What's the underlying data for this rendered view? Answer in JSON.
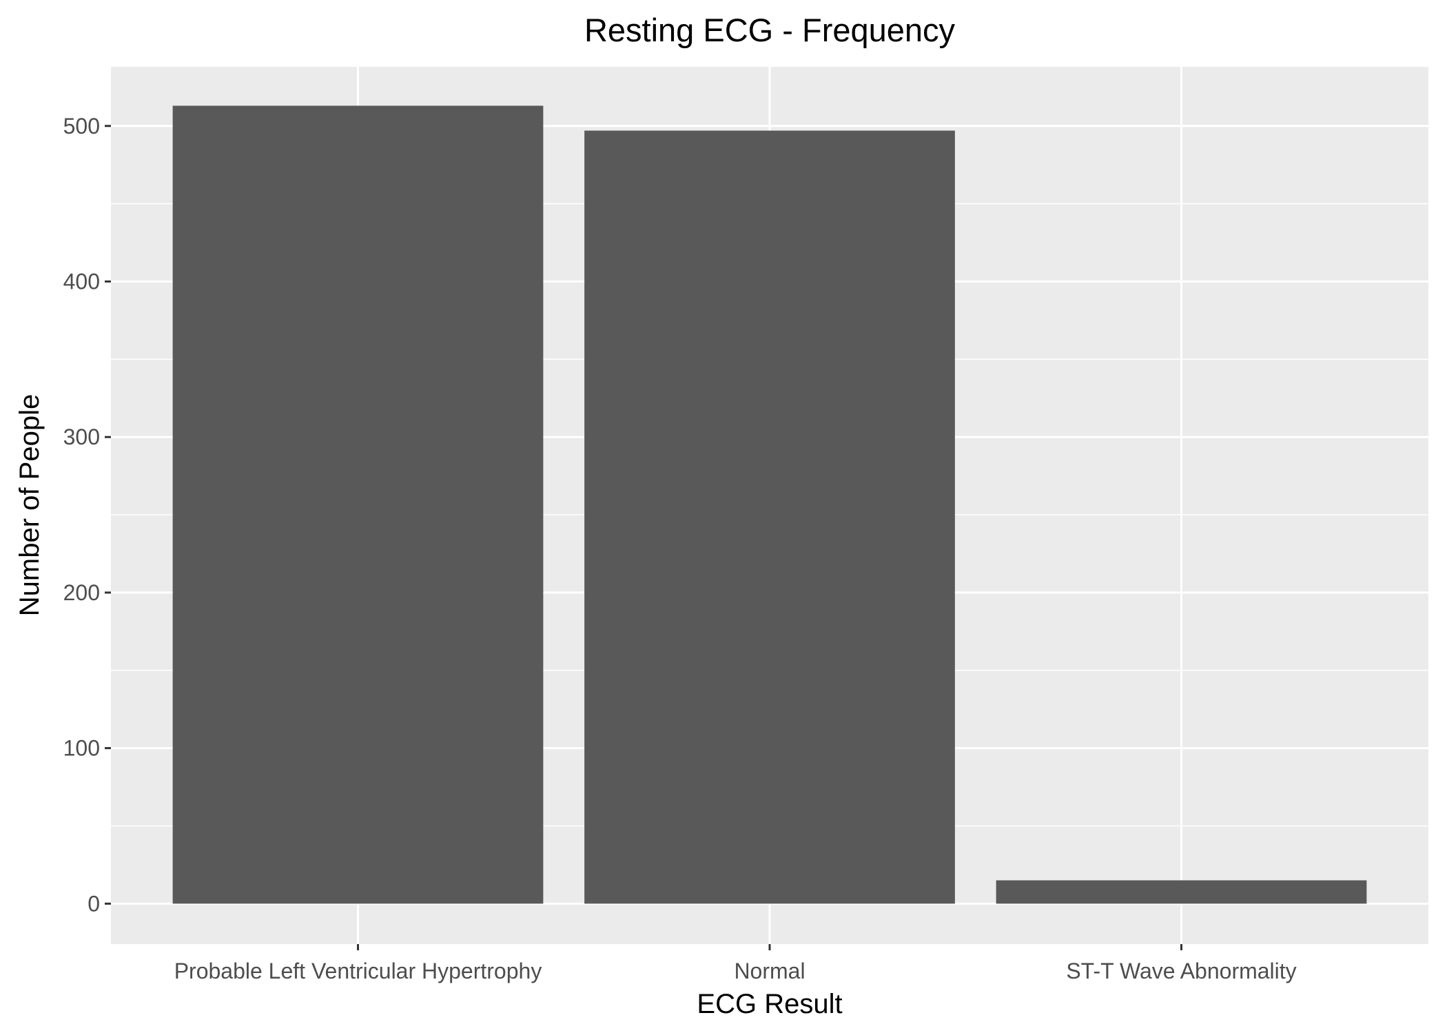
{
  "chart_data": {
    "type": "bar",
    "title": "Resting ECG - Frequency",
    "xlabel": "ECG Result",
    "ylabel": "Number of People",
    "categories": [
      "Probable Left Ventricular Hypertrophy",
      "Normal",
      "ST-T Wave Abnormality"
    ],
    "values": [
      513,
      497,
      15
    ],
    "ylim": [
      -26,
      538
    ],
    "yticks": [
      0,
      100,
      200,
      300,
      400,
      500
    ],
    "ytick_labels": [
      "0",
      "100",
      "200",
      "300",
      "400",
      "500"
    ],
    "grid": true,
    "legend": "none",
    "colors": {
      "bar": "#595959",
      "panel": "#ebebeb",
      "grid": "#ffffff",
      "tick_text": "#4d4d4d",
      "tick_mark": "#333333",
      "text": "#000000"
    }
  }
}
